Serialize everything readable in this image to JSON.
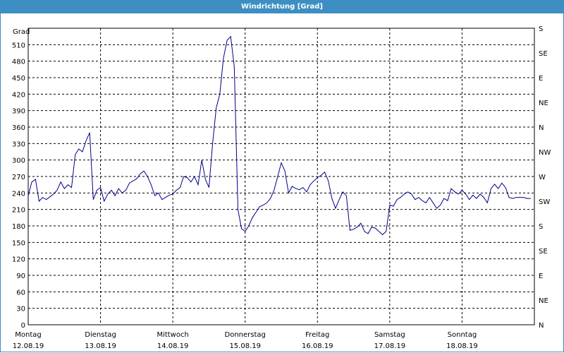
{
  "window": {
    "title": "Windrichtung [Grad]"
  },
  "chart_data": {
    "type": "line",
    "title": "Windrichtung [Grad]",
    "ylabel": "Grad",
    "ylim": [
      0,
      540
    ],
    "y_ticks": [
      0,
      30,
      60,
      90,
      120,
      150,
      180,
      210,
      240,
      270,
      300,
      330,
      360,
      390,
      420,
      450,
      480,
      510
    ],
    "right_ticks": [
      "N",
      "NE",
      "E",
      "SE",
      "S",
      "SW",
      "W",
      "NW",
      "N",
      "NE",
      "E",
      "SE",
      "S"
    ],
    "x_range": [
      0,
      7
    ],
    "x_ticks": [
      {
        "day": "Montag",
        "date": "12.08.19"
      },
      {
        "day": "Dienstag",
        "date": "13.08.19"
      },
      {
        "day": "Mittwoch",
        "date": "14.08.19"
      },
      {
        "day": "Donnerstag",
        "date": "15.08.19"
      },
      {
        "day": "Freitag",
        "date": "16.08.19"
      },
      {
        "day": "Samstag",
        "date": "17.08.19"
      },
      {
        "day": "Sonntag",
        "date": "18.08.19"
      }
    ],
    "grid": true,
    "color": "#00008b",
    "series": [
      {
        "x": [
          0.0,
          0.05,
          0.1,
          0.15,
          0.2,
          0.25,
          0.3,
          0.35,
          0.4,
          0.45,
          0.5,
          0.55,
          0.6,
          0.65,
          0.7,
          0.75,
          0.8,
          0.85,
          0.9,
          0.95,
          1.0,
          1.05,
          1.1,
          1.15,
          1.2,
          1.25,
          1.3,
          1.35,
          1.4,
          1.45,
          1.5,
          1.55,
          1.6,
          1.65,
          1.7,
          1.75,
          1.8,
          1.85,
          1.9,
          1.95,
          2.0,
          2.05,
          2.1,
          2.15,
          2.2,
          2.25,
          2.3,
          2.35,
          2.4,
          2.45,
          2.5,
          2.55,
          2.6,
          2.65,
          2.7,
          2.75,
          2.8,
          2.85,
          2.9,
          2.95,
          3.0,
          3.05,
          3.1,
          3.15,
          3.2,
          3.25,
          3.3,
          3.35,
          3.4,
          3.45,
          3.5,
          3.55,
          3.6,
          3.65,
          3.7,
          3.75,
          3.8,
          3.85,
          3.9,
          3.95,
          4.0,
          4.05,
          4.1,
          4.15,
          4.2,
          4.25,
          4.3,
          4.35,
          4.4,
          4.45,
          4.5,
          4.55,
          4.6,
          4.65,
          4.7,
          4.75,
          4.8,
          4.85,
          4.9,
          4.95,
          5.0,
          5.05,
          5.1,
          5.15,
          5.2,
          5.25,
          5.3,
          5.35,
          5.4,
          5.45,
          5.5,
          5.55,
          5.6,
          5.65,
          5.7,
          5.75,
          5.8,
          5.85,
          5.9,
          5.95,
          6.0,
          6.05,
          6.1,
          6.15,
          6.2,
          6.25,
          6.3,
          6.35,
          6.4,
          6.45,
          6.5,
          6.55,
          6.6,
          6.65,
          6.7,
          6.75,
          6.8,
          6.85,
          6.9,
          6.95
        ],
        "y": [
          235,
          260,
          265,
          225,
          232,
          228,
          233,
          238,
          245,
          260,
          248,
          255,
          250,
          310,
          320,
          315,
          335,
          350,
          228,
          245,
          250,
          225,
          238,
          245,
          235,
          248,
          240,
          245,
          258,
          262,
          266,
          275,
          280,
          270,
          255,
          235,
          240,
          228,
          232,
          236,
          238,
          245,
          250,
          270,
          268,
          260,
          270,
          255,
          300,
          265,
          250,
          330,
          395,
          420,
          485,
          518,
          525,
          470,
          210,
          175,
          170,
          180,
          195,
          205,
          215,
          218,
          222,
          230,
          245,
          270,
          295,
          280,
          240,
          252,
          248,
          246,
          250,
          242,
          255,
          262,
          268,
          272,
          278,
          262,
          230,
          212,
          228,
          242,
          235,
          172,
          174,
          178,
          185,
          170,
          166,
          178,
          176,
          170,
          164,
          170,
          218,
          216,
          228,
          232,
          238,
          242,
          238,
          228,
          232,
          226,
          222,
          232,
          222,
          212,
          218,
          230,
          226,
          248,
          242,
          238,
          245,
          238,
          228,
          236,
          230,
          238,
          232,
          222,
          248,
          256,
          248,
          258,
          250,
          232,
          230,
          232,
          232,
          232,
          230,
          230
        ]
      }
    ]
  }
}
